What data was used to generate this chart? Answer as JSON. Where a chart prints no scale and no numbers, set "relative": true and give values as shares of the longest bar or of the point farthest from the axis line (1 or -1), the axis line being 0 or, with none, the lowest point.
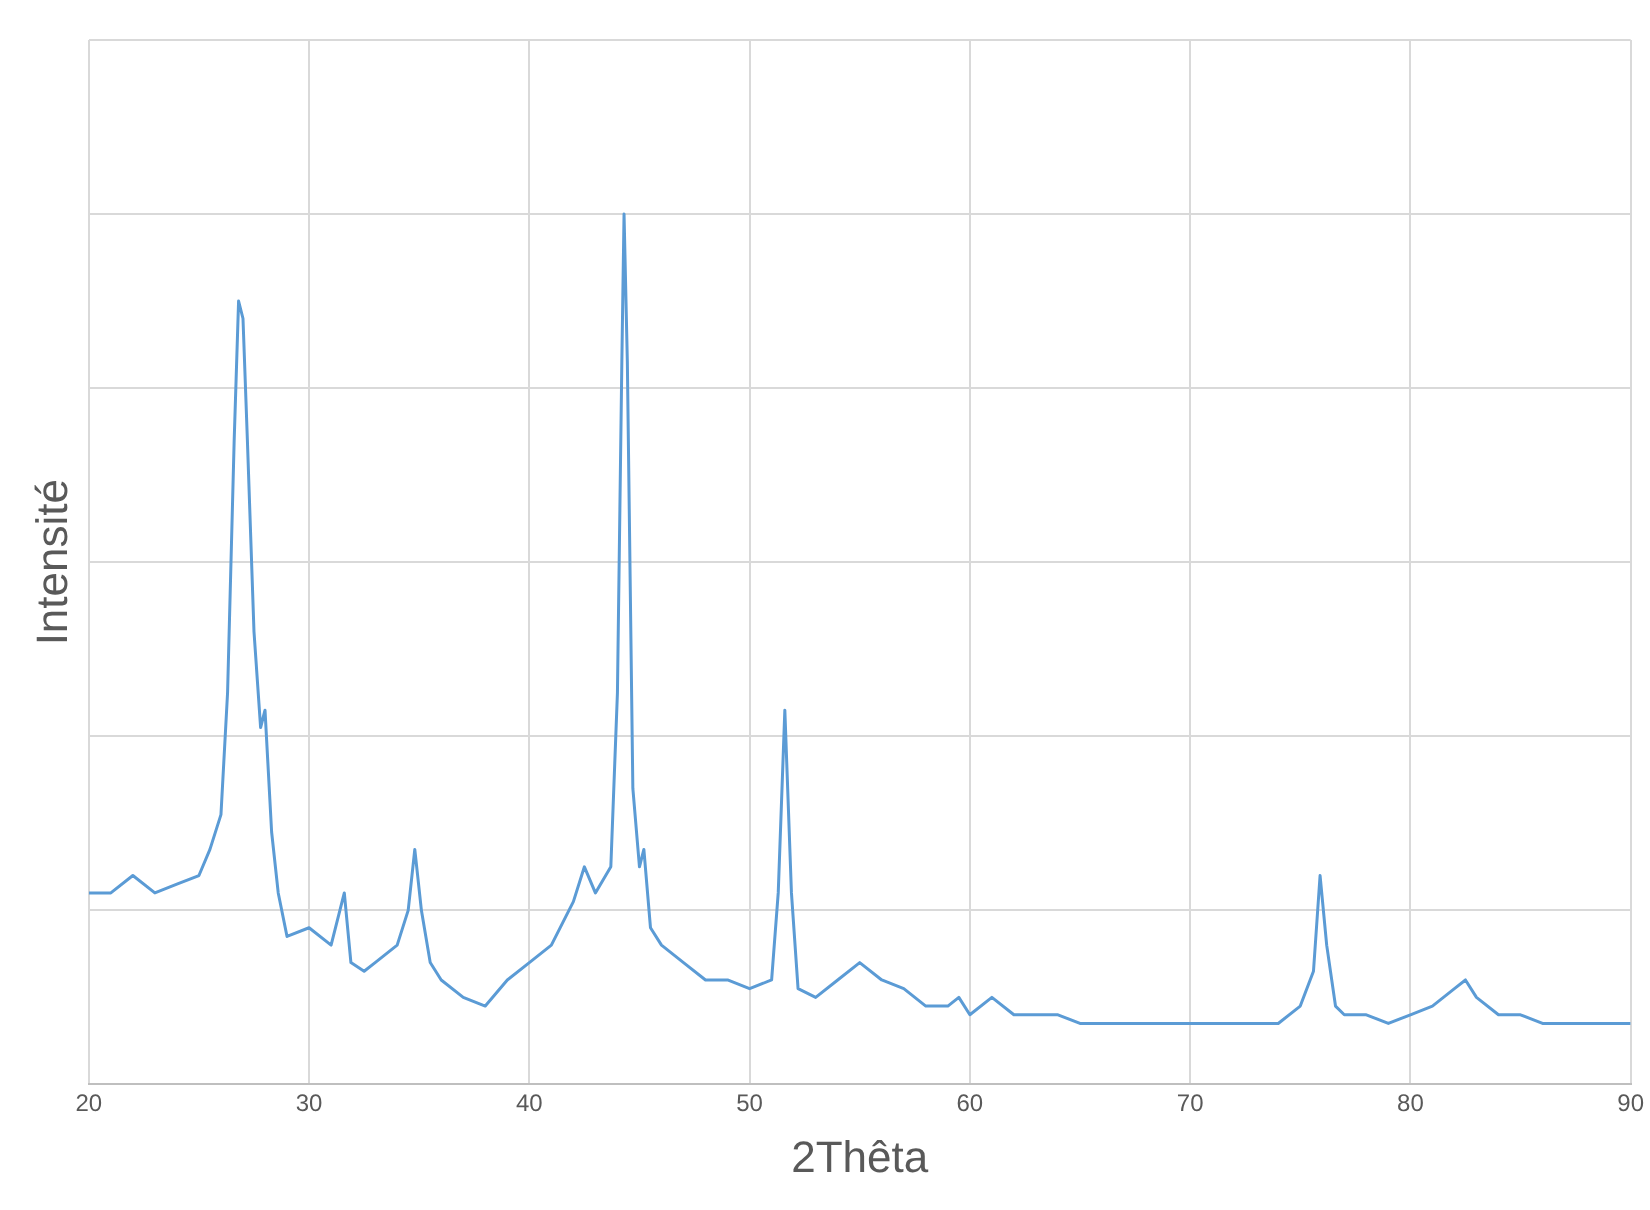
{
  "chart_data": {
    "type": "line",
    "xlabel": "2Thêta",
    "ylabel": "Intensité",
    "relative": true,
    "xlim": [
      20,
      90
    ],
    "xticks": [
      20,
      30,
      40,
      50,
      60,
      70,
      80,
      90
    ],
    "grid": true,
    "legend": false,
    "marker": "none",
    "line_style": "solid",
    "series": [
      {
        "color": "#5b9bd5",
        "x": [
          20,
          21,
          22,
          23,
          24,
          25,
          25.5,
          26,
          26.3,
          26.6,
          26.8,
          27,
          27.2,
          27.5,
          27.8,
          28,
          28.3,
          28.6,
          29,
          30,
          31,
          31.6,
          31.9,
          32.5,
          33,
          34,
          34.5,
          34.8,
          35.1,
          35.5,
          36,
          37,
          38,
          39,
          40,
          41,
          42,
          42.5,
          43,
          43.7,
          44,
          44.2,
          44.3,
          44.45,
          44.7,
          45,
          45.2,
          45.5,
          46,
          47,
          48,
          49,
          50,
          51,
          51.3,
          51.6,
          51.9,
          52.2,
          53,
          54,
          55,
          56,
          57,
          58,
          59,
          59.5,
          60,
          61,
          62,
          63,
          64,
          65,
          66,
          67,
          68,
          69,
          70,
          71,
          72,
          73,
          74,
          75,
          75.6,
          75.9,
          76.2,
          76.6,
          77,
          78,
          79,
          80,
          81,
          82,
          82.5,
          83,
          84,
          85,
          86,
          87,
          88,
          89,
          90
        ],
        "values": [
          0.22,
          0.22,
          0.24,
          0.22,
          0.23,
          0.24,
          0.27,
          0.31,
          0.45,
          0.74,
          0.9,
          0.88,
          0.74,
          0.52,
          0.41,
          0.43,
          0.29,
          0.22,
          0.17,
          0.18,
          0.16,
          0.22,
          0.14,
          0.13,
          0.14,
          0.16,
          0.2,
          0.27,
          0.2,
          0.14,
          0.12,
          0.1,
          0.09,
          0.12,
          0.14,
          0.16,
          0.21,
          0.25,
          0.22,
          0.25,
          0.45,
          0.83,
          1,
          0.83,
          0.34,
          0.25,
          0.27,
          0.18,
          0.16,
          0.14,
          0.12,
          0.12,
          0.11,
          0.12,
          0.22,
          0.43,
          0.22,
          0.11,
          0.1,
          0.12,
          0.14,
          0.12,
          0.11,
          0.09,
          0.09,
          0.1,
          0.08,
          0.1,
          0.08,
          0.08,
          0.08,
          0.07,
          0.07,
          0.07,
          0.07,
          0.07,
          0.07,
          0.07,
          0.07,
          0.07,
          0.07,
          0.09,
          0.13,
          0.24,
          0.16,
          0.09,
          0.08,
          0.08,
          0.07,
          0.08,
          0.09,
          0.11,
          0.12,
          0.1,
          0.08,
          0.08,
          0.07,
          0.07,
          0.07,
          0.07,
          0.07
        ]
      }
    ]
  }
}
